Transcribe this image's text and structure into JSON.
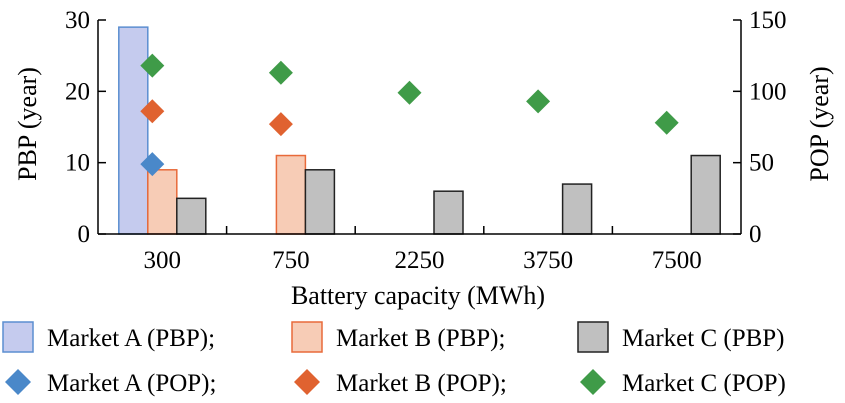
{
  "chart_data": {
    "type": "bar",
    "xlabel": "Battery capacity (MWh)",
    "ylabel_left": "PBP (year)",
    "ylabel_right": "POP (year)",
    "categories": [
      "300",
      "750",
      "2250",
      "3750",
      "7500"
    ],
    "ylim_left": [
      0,
      30
    ],
    "ylim_right": [
      0,
      150
    ],
    "yticks_left": [
      "0",
      "10",
      "20",
      "30"
    ],
    "yticks_right": [
      "0",
      "50",
      "100",
      "150"
    ],
    "grid": false,
    "legend_position": "bottom",
    "bar_series": [
      {
        "name": "Market A (PBP);",
        "values": [
          29,
          null,
          null,
          null,
          null
        ],
        "fill": "#c5cbee",
        "stroke": "#5b8ed0"
      },
      {
        "name": "Market B (PBP);",
        "values": [
          9,
          11,
          null,
          null,
          null
        ],
        "fill": "#f7ccb6",
        "stroke": "#e86a3a"
      },
      {
        "name": "Market C (PBP)",
        "values": [
          5,
          9,
          6,
          7,
          11
        ],
        "fill": "#c0c0c0",
        "stroke": "#222222"
      }
    ],
    "marker_series": [
      {
        "name": "Market A (POP);",
        "values": [
          49,
          null,
          null,
          null,
          null
        ],
        "color": "#4a88c9"
      },
      {
        "name": "Market B (POP);",
        "values": [
          86,
          77,
          null,
          null,
          null
        ],
        "color": "#e06230"
      },
      {
        "name": "Market C (POP)",
        "values": [
          118,
          113,
          99,
          93,
          78
        ],
        "color": "#3f9b48"
      }
    ]
  }
}
